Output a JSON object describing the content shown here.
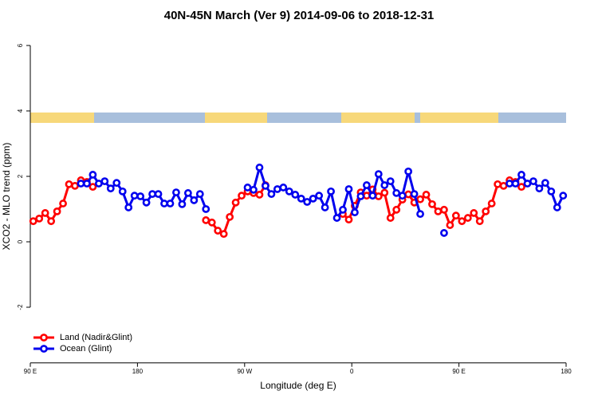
{
  "chart_data": {
    "type": "line",
    "title": "40N-45N March (Ver 9)   2014-09-06 to 2018-12-31",
    "x_label": "Longitude (deg E)",
    "y_label": "XCO2 - MLO trend (ppm)",
    "xlim": [
      90,
      540
    ],
    "ylim": [
      -3.7,
      6.4
    ],
    "xticks": [
      {
        "value": 90,
        "label": "90 E"
      },
      {
        "value": 180,
        "label": "180"
      },
      {
        "value": 270,
        "label": "90 W"
      },
      {
        "value": 360,
        "label": "0"
      },
      {
        "value": 450,
        "label": "90 E"
      },
      {
        "value": 540,
        "label": "180"
      }
    ],
    "yticks": [
      -2,
      0,
      2,
      4,
      6
    ],
    "legend": "bottom-left",
    "x": [
      92.5,
      97.5,
      102.5,
      107.5,
      112.5,
      117.5,
      122.5,
      127.5,
      132.5,
      137.5,
      142.5,
      147.5,
      152.5,
      157.5,
      162.5,
      167.5,
      172.5,
      177.5,
      182.5,
      187.5,
      192.5,
      197.5,
      202.5,
      207.5,
      212.5,
      217.5,
      222.5,
      227.5,
      232.5,
      237.5,
      242.5,
      247.5,
      252.5,
      257.5,
      262.5,
      267.5,
      272.5,
      277.5,
      282.5,
      287.5,
      292.5,
      297.5,
      302.5,
      307.5,
      312.5,
      317.5,
      322.5,
      327.5,
      332.5,
      337.5,
      342.5,
      347.5,
      352.5,
      357.5,
      362.5,
      367.5,
      372.5,
      377.5,
      382.5,
      387.5,
      392.5,
      397.5,
      402.5,
      407.5,
      412.5,
      417.5,
      422.5,
      427.5,
      432.5,
      437.5,
      442.5,
      447.5,
      452.5,
      457.5,
      462.5,
      467.5,
      472.5,
      477.5,
      482.5,
      487.5,
      492.5,
      497.5,
      502.5,
      507.5,
      512.5,
      517.5,
      522.5,
      527.5,
      532.5,
      537.5
    ],
    "series": [
      {
        "name": "Land (Nadir&Glint)",
        "color": "#ff0000",
        "values": [
          0.63,
          0.71,
          0.88,
          0.63,
          0.93,
          1.17,
          1.76,
          1.71,
          1.88,
          1.83,
          1.68,
          null,
          null,
          null,
          null,
          null,
          null,
          null,
          null,
          null,
          null,
          null,
          null,
          null,
          null,
          null,
          null,
          null,
          null,
          0.66,
          0.59,
          0.34,
          0.24,
          0.76,
          1.2,
          1.41,
          1.54,
          1.49,
          1.44,
          1.73,
          null,
          null,
          null,
          null,
          null,
          null,
          null,
          null,
          null,
          null,
          null,
          null,
          0.85,
          0.68,
          1.1,
          1.51,
          1.41,
          1.6,
          1.39,
          1.5,
          0.73,
          0.98,
          1.29,
          1.45,
          1.2,
          1.3,
          1.44,
          1.15,
          0.93,
          0.98,
          0.51,
          0.8,
          0.63,
          0.73,
          0.88,
          0.63,
          0.93,
          1.17,
          1.76,
          1.71,
          1.88,
          1.83,
          1.68,
          null,
          null,
          null,
          null,
          null,
          null,
          null
        ]
      },
      {
        "name": "Ocean (Glint)",
        "color": "#0000ee",
        "values": [
          null,
          null,
          null,
          null,
          null,
          null,
          null,
          null,
          1.78,
          1.78,
          2.05,
          1.78,
          1.85,
          1.63,
          1.8,
          1.54,
          1.05,
          1.41,
          1.39,
          1.2,
          1.46,
          1.46,
          1.17,
          1.17,
          1.51,
          1.15,
          1.49,
          1.27,
          1.46,
          1.0,
          null,
          null,
          null,
          null,
          null,
          null,
          1.66,
          1.59,
          2.27,
          1.71,
          1.46,
          1.61,
          1.66,
          1.54,
          1.44,
          1.32,
          1.22,
          1.32,
          1.41,
          1.05,
          1.54,
          0.73,
          0.98,
          1.61,
          0.9,
          1.39,
          1.73,
          1.41,
          2.07,
          1.73,
          1.85,
          1.49,
          1.41,
          2.15,
          1.46,
          0.85,
          null,
          null,
          null,
          0.27,
          null,
          null,
          null,
          null,
          null,
          null,
          null,
          null,
          null,
          null,
          1.78,
          1.78,
          2.05,
          1.78,
          1.85,
          1.63,
          1.8,
          1.54,
          1.05,
          1.41
        ]
      }
    ]
  }
}
